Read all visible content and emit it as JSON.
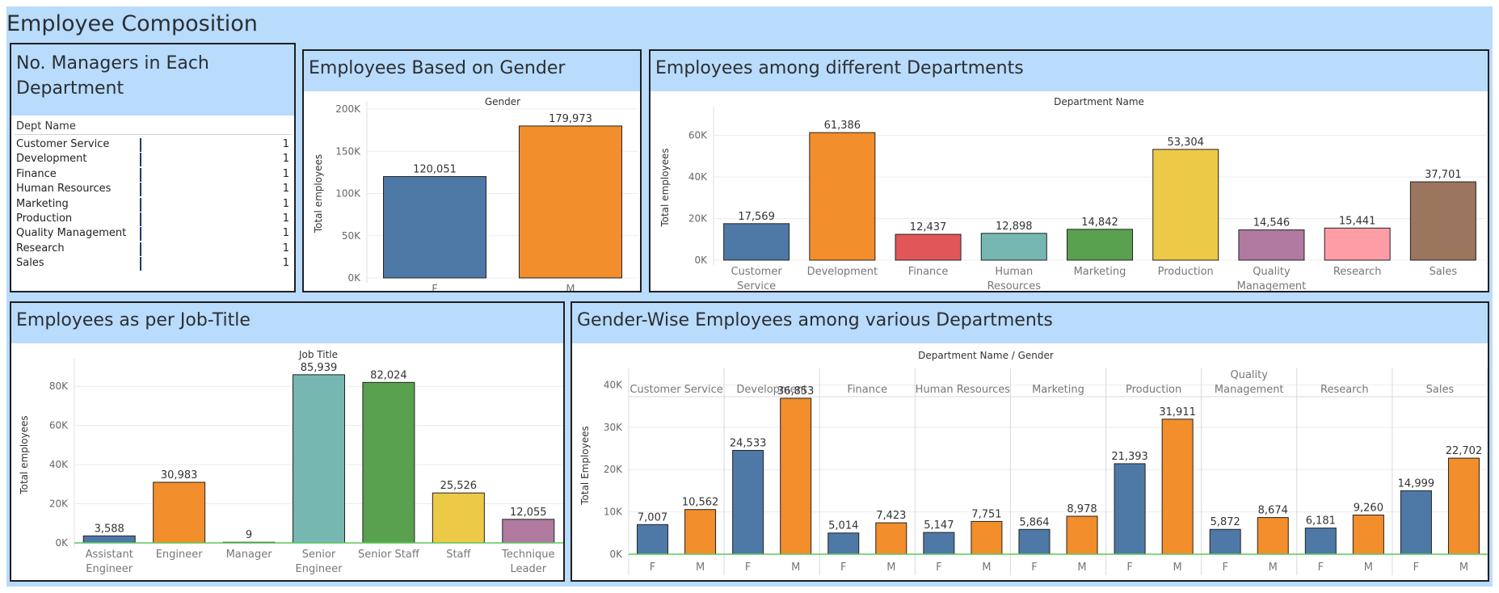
{
  "dashboard_title": "Employee Composition",
  "colors": {
    "blue": "#4e79a7",
    "orange": "#f28e2b",
    "red": "#e15759",
    "teal": "#76b7b2",
    "green": "#59a14f",
    "yellow": "#edc948",
    "purple": "#b07aa1",
    "pink": "#ff9da7",
    "brown": "#9c755f",
    "header_bg": "#b9dbfc"
  },
  "managers": {
    "title": "No. Managers in Each Department",
    "column_header": "Dept Name",
    "rows": [
      {
        "name": "Customer Service",
        "value": "1"
      },
      {
        "name": "Development",
        "value": "1"
      },
      {
        "name": "Finance",
        "value": "1"
      },
      {
        "name": "Human Resources",
        "value": "1"
      },
      {
        "name": "Marketing",
        "value": "1"
      },
      {
        "name": "Production",
        "value": "1"
      },
      {
        "name": "Quality Management",
        "value": "1"
      },
      {
        "name": "Research",
        "value": "1"
      },
      {
        "name": "Sales",
        "value": "1"
      }
    ]
  },
  "panels": {
    "gender_title": "Employees Based on Gender",
    "dept_title": "Employees among different Departments",
    "job_title": "Employees as per Job-Title",
    "gender_dept_title": "Gender-Wise Employees among various Departments"
  },
  "chart_data": [
    {
      "id": "gender",
      "type": "bar",
      "title": "Gender",
      "ylabel": "Total employees",
      "categories": [
        "F",
        "M"
      ],
      "values": [
        120051,
        179973
      ],
      "value_labels": [
        "120,051",
        "179,973"
      ],
      "colors": [
        "#4e79a7",
        "#f28e2b"
      ],
      "ylim": [
        0,
        200000
      ],
      "yticks": [
        0,
        50000,
        100000,
        150000,
        200000
      ],
      "ytick_labels": [
        "0K",
        "50K",
        "100K",
        "150K",
        "200K"
      ]
    },
    {
      "id": "departments",
      "type": "bar",
      "title": "Department Name",
      "ylabel": "Total employees",
      "categories": [
        [
          "Customer",
          "Service"
        ],
        [
          "Development"
        ],
        [
          "Finance"
        ],
        [
          "Human",
          "Resources"
        ],
        [
          "Marketing"
        ],
        [
          "Production"
        ],
        [
          "Quality",
          "Management"
        ],
        [
          "Research"
        ],
        [
          "Sales"
        ]
      ],
      "values": [
        17569,
        61386,
        12437,
        12898,
        14842,
        53304,
        14546,
        15441,
        37701
      ],
      "value_labels": [
        "17,569",
        "61,386",
        "12,437",
        "12,898",
        "14,842",
        "53,304",
        "14,546",
        "15,441",
        "37,701"
      ],
      "colors": [
        "#4e79a7",
        "#f28e2b",
        "#e15759",
        "#76b7b2",
        "#59a14f",
        "#edc948",
        "#b07aa1",
        "#ff9da7",
        "#9c755f"
      ],
      "ylim": [
        0,
        70000
      ],
      "yticks": [
        0,
        20000,
        40000,
        60000
      ],
      "ytick_labels": [
        "0K",
        "20K",
        "40K",
        "60K"
      ]
    },
    {
      "id": "job_titles",
      "type": "bar",
      "title": "Job Title",
      "ylabel": "Total employees",
      "categories": [
        [
          "Assistant",
          "Engineer"
        ],
        [
          "Engineer"
        ],
        [
          "Manager"
        ],
        [
          "Senior",
          "Engineer"
        ],
        [
          "Senior Staff"
        ],
        [
          "Staff"
        ],
        [
          "Technique",
          "Leader"
        ]
      ],
      "values": [
        3588,
        30983,
        9,
        85939,
        82024,
        25526,
        12055
      ],
      "value_labels": [
        "3,588",
        "30,983",
        "9",
        "85,939",
        "82,024",
        "25,526",
        "12,055"
      ],
      "colors": [
        "#4e79a7",
        "#f28e2b",
        "#e15759",
        "#76b7b2",
        "#59a14f",
        "#edc948",
        "#b07aa1"
      ],
      "ylim": [
        0,
        90000
      ],
      "yticks": [
        0,
        20000,
        40000,
        60000,
        80000
      ],
      "ytick_labels": [
        "0K",
        "20K",
        "40K",
        "60K",
        "80K"
      ]
    },
    {
      "id": "gender_by_department",
      "type": "bar",
      "title": "Department Name / Gender",
      "ylabel": "Total Employees",
      "groups": [
        [
          "Customer Service"
        ],
        [
          "Development"
        ],
        [
          "Finance"
        ],
        [
          "Human Resources"
        ],
        [
          "Marketing"
        ],
        [
          "Production"
        ],
        [
          "Quality",
          "Management"
        ],
        [
          "Research"
        ],
        [
          "Sales"
        ]
      ],
      "sub_categories": [
        "F",
        "M"
      ],
      "series": [
        {
          "name": "F",
          "values": [
            7007,
            24533,
            5014,
            5147,
            5864,
            21393,
            5872,
            6181,
            14999
          ],
          "value_labels": [
            "7,007",
            "24,533",
            "5,014",
            "5,147",
            "5,864",
            "21,393",
            "5,872",
            "6,181",
            "14,999"
          ]
        },
        {
          "name": "M",
          "values": [
            10562,
            36853,
            7423,
            7751,
            8978,
            31911,
            8674,
            9260,
            22702
          ],
          "value_labels": [
            "10,562",
            "36,853",
            "7,423",
            "7,751",
            "8,978",
            "31,911",
            "8,674",
            "9,260",
            "22,702"
          ]
        }
      ],
      "colors": [
        "#4e79a7",
        "#f28e2b"
      ],
      "ylim": [
        0,
        42000
      ],
      "yticks": [
        0,
        10000,
        20000,
        30000,
        40000
      ],
      "ytick_labels": [
        "0K",
        "10K",
        "20K",
        "30K",
        "40K"
      ]
    }
  ]
}
